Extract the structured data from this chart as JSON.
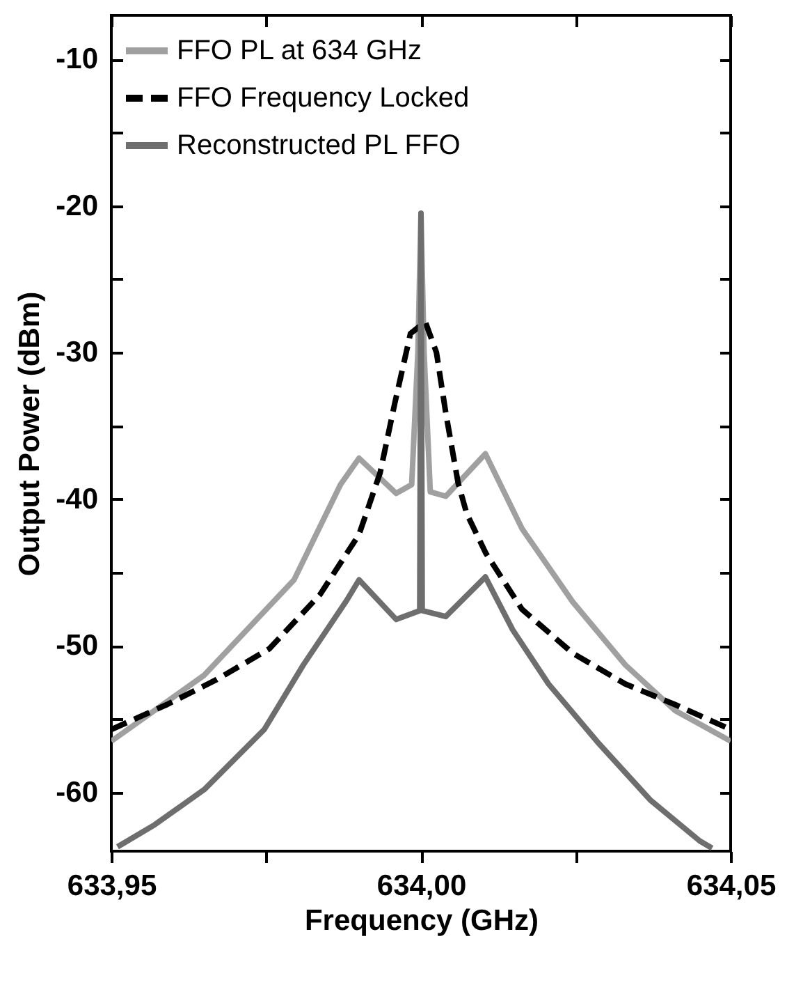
{
  "chart_data": {
    "type": "line",
    "xlabel": "Frequency (GHz)",
    "ylabel": "Output Power (dBm)",
    "xlim": [
      633.95,
      634.05
    ],
    "ylim": [
      -64,
      -7
    ],
    "xticks": [
      {
        "value": 633.95,
        "label": "633,95"
      },
      {
        "value": 633.975,
        "label": null
      },
      {
        "value": 634.0,
        "label": "634,00"
      },
      {
        "value": 634.025,
        "label": null
      },
      {
        "value": 634.05,
        "label": "634,05"
      }
    ],
    "yticks": [
      -60,
      {
        "value": -55,
        "label": null
      },
      -50,
      {
        "value": -45,
        "label": null
      },
      -40,
      {
        "value": -35,
        "label": null
      },
      -30,
      {
        "value": -25,
        "label": null
      },
      -20,
      {
        "value": -15,
        "label": null
      },
      -10
    ],
    "grid": false,
    "legend": "top left",
    "marker": "none",
    "series": [
      {
        "name": "FFO PL at 634 GHz",
        "color": "#a0a0a0",
        "line_style": "solid",
        "x": [
          633.95,
          633.965,
          633.9795,
          633.987,
          633.99,
          633.996,
          633.9985,
          633.9995,
          634.0,
          634.0005,
          634.0015,
          634.004,
          634.0104,
          634.0163,
          634.0245,
          634.033,
          634.041,
          634.05
        ],
        "values": [
          -56.5,
          -52,
          -45.5,
          -39,
          -37.2,
          -39.6,
          -39,
          -30,
          -20.5,
          -30,
          -39.5,
          -39.8,
          -36.9,
          -42,
          -47,
          -51.3,
          -54.4,
          -56.5
        ]
      },
      {
        "name": "FFO Frequency Locked",
        "color": "#000000",
        "line_style": "dashed",
        "x": [
          633.95,
          633.959,
          633.967,
          633.9755,
          633.9837,
          633.99,
          633.9934,
          633.9958,
          633.9983,
          634.0007,
          634.0025,
          634.004,
          634.006,
          634.0074,
          634.0105,
          634.0163,
          634.0245,
          634.033,
          634.041,
          634.05
        ],
        "values": [
          -55.7,
          -54,
          -52.3,
          -50.2,
          -46.5,
          -42.4,
          -38.2,
          -33.4,
          -28.7,
          -27.9,
          -30,
          -34.1,
          -38.9,
          -41,
          -43.7,
          -47.5,
          -50.5,
          -52.6,
          -54,
          -55.7
        ]
      },
      {
        "name": "Reconstructed PL FFO",
        "color": "#6e6e6e",
        "line_style": "solid",
        "x": [
          633.951,
          633.957,
          633.965,
          633.9747,
          633.981,
          633.988,
          633.99,
          633.996,
          633.9998,
          634.0,
          634.0002,
          634.004,
          634.0104,
          634.0148,
          634.0206,
          634.0288,
          634.037,
          634.045,
          634.047
        ],
        "values": [
          -63.7,
          -62.2,
          -59.8,
          -55.7,
          -51.3,
          -46.9,
          -45.5,
          -48.2,
          -47.6,
          -20.5,
          -47.6,
          -48,
          -45.3,
          -48.9,
          -52.6,
          -56.7,
          -60.5,
          -63.3,
          -63.8
        ]
      }
    ]
  }
}
